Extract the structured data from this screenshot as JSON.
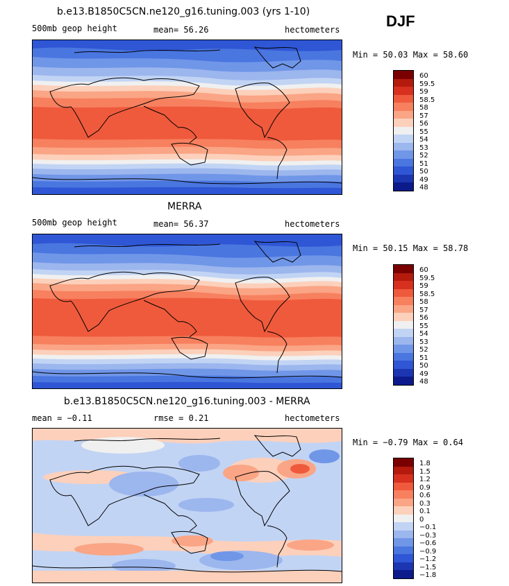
{
  "header": {
    "season": "DJF"
  },
  "chart_data": [
    {
      "type": "heatmap",
      "title": "b.e13.B1850C5CN.ne120_g16.tuning.003 (yrs 1-10)",
      "field": "500mb geop height",
      "stat_text": "mean=  56.26",
      "units": "hectometers",
      "range_text": "Min =  50.03 Max =  58.60",
      "mean": 56.26,
      "min": 50.03,
      "max": 58.6,
      "levels": [
        "60",
        "59.5",
        "59",
        "58.5",
        "58",
        "57",
        "56",
        "55",
        "54",
        "53",
        "52",
        "51",
        "50",
        "49",
        "48"
      ],
      "colors": [
        "#7a0000",
        "#b41b0d",
        "#d7301f",
        "#ef5a3c",
        "#f7805f",
        "#faa585",
        "#fcd0bb",
        "#f0f0f0",
        "#c2d4f4",
        "#9cb6ee",
        "#7096e8",
        "#4a76e0",
        "#2f56d4",
        "#1c36b2",
        "#0d1a8c"
      ]
    },
    {
      "type": "heatmap",
      "title": "MERRA",
      "field": "500mb geop height",
      "stat_text": "mean=  56.37",
      "units": "hectometers",
      "range_text": "Min =  50.15 Max =  58.78",
      "mean": 56.37,
      "min": 50.15,
      "max": 58.78,
      "levels": [
        "60",
        "59.5",
        "59",
        "58.5",
        "58",
        "57",
        "56",
        "55",
        "54",
        "53",
        "52",
        "51",
        "50",
        "49",
        "48"
      ],
      "colors": [
        "#7a0000",
        "#b41b0d",
        "#d7301f",
        "#ef5a3c",
        "#f7805f",
        "#faa585",
        "#fcd0bb",
        "#f0f0f0",
        "#c2d4f4",
        "#9cb6ee",
        "#7096e8",
        "#4a76e0",
        "#2f56d4",
        "#1c36b2",
        "#0d1a8c"
      ]
    },
    {
      "type": "heatmap",
      "title": "b.e13.B1850C5CN.ne120_g16.tuning.003 - MERRA",
      "stat_text": "mean =  −0.11",
      "stat2_text": "rmse =   0.21",
      "units": "hectometers",
      "range_text": "Min =  −0.79 Max =   0.64",
      "mean": -0.11,
      "rmse": 0.21,
      "min": -0.79,
      "max": 0.64,
      "levels": [
        "1.8",
        "1.5",
        "1.2",
        "0.9",
        "0.6",
        "0.3",
        "0.1",
        "0",
        "−0.1",
        "−0.3",
        "−0.6",
        "−0.9",
        "−1.2",
        "−1.5",
        "−1.8"
      ],
      "colors": [
        "#7a0000",
        "#b41b0d",
        "#d7301f",
        "#ef5a3c",
        "#f7805f",
        "#faa585",
        "#fcd0bb",
        "#f0f0f0",
        "#c2d4f4",
        "#9cb6ee",
        "#7096e8",
        "#4a76e0",
        "#2f56d4",
        "#1c36b2",
        "#0d1a8c"
      ]
    }
  ]
}
